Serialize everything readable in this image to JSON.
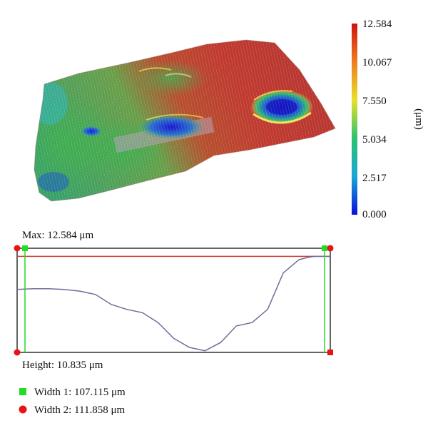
{
  "chart_data": [
    {
      "type": "heatmap",
      "subtype": "3d-surface",
      "colorbar": {
        "ticks": [
          "12.584",
          "10.067",
          "7.550",
          "5.034",
          "2.517",
          "0.000"
        ],
        "label": "(μm)",
        "range": [
          0,
          12.584
        ],
        "colors": [
          "#0a10d8",
          "#18a8d8",
          "#2cc26e",
          "#e8e02a",
          "#ee7d1c",
          "#cc1410"
        ]
      }
    },
    {
      "type": "line",
      "xlim": [
        0,
        100
      ],
      "ylim": [
        0,
        12.584
      ],
      "profile": {
        "x": [
          0,
          5,
          10,
          15,
          20,
          25,
          30,
          35,
          40,
          45,
          50,
          55,
          60,
          65,
          70,
          75,
          80,
          85,
          90,
          93,
          95,
          97,
          100
        ],
        "y": [
          7.6,
          7.7,
          7.7,
          7.6,
          7.4,
          7.0,
          5.8,
          5.2,
          4.8,
          3.6,
          1.7,
          0.6,
          0.2,
          1.2,
          3.2,
          3.6,
          5.2,
          9.6,
          11.2,
          11.5,
          11.6,
          11.6,
          11.6
        ]
      },
      "max_line_value": 11.6,
      "colors": {
        "profile": "#6e6e9a",
        "max_line": "#d23a32",
        "width1": "#22dd22",
        "width2": "#e81414"
      },
      "annotations": {
        "max": "Max: 12.584 μm",
        "height": "Height: 10.835 μm",
        "width1": "Width 1: 107.115 μm",
        "width2": "Width 2: 111.858 μm"
      }
    }
  ]
}
